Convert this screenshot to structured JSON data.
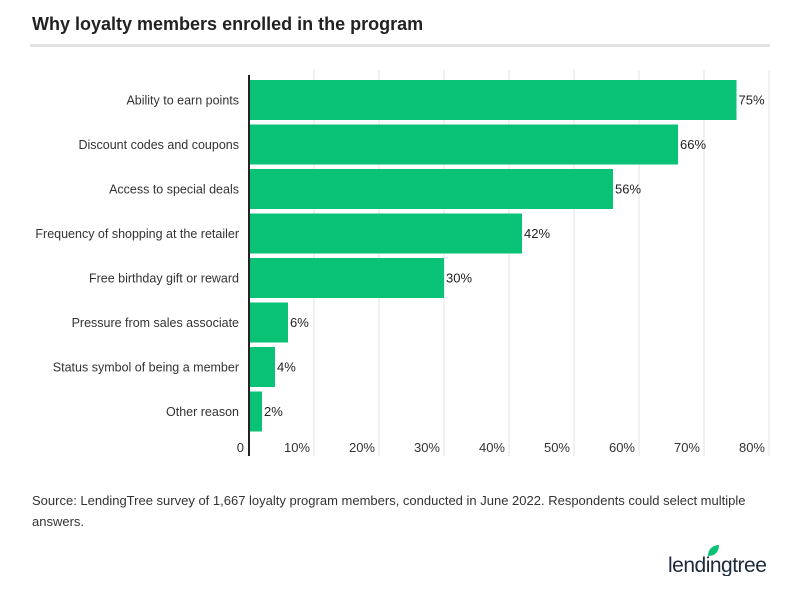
{
  "title": "Why loyalty members enrolled in the program",
  "source": "Source: LendingTree survey of 1,667 loyalty program members, conducted in June 2022. Respondents could select multiple answers.",
  "logo_text": "lendingtree",
  "colors": {
    "bar": "#0ac275",
    "axis": "#222222",
    "grid": "#e3e3e3"
  },
  "chart_data": {
    "type": "bar",
    "orientation": "horizontal",
    "categories": [
      "Ability to earn points",
      "Discount codes and coupons",
      "Access to special deals",
      "Frequency of shopping at the retailer",
      "Free birthday gift or reward",
      "Pressure from sales associate",
      "Status symbol of being a member",
      "Other reason"
    ],
    "values": [
      75,
      66,
      56,
      42,
      30,
      6,
      4,
      2
    ],
    "data_labels": [
      "75%",
      "66%",
      "56%",
      "42%",
      "30%",
      "6%",
      "4%",
      "2%"
    ],
    "xlim": [
      0,
      80
    ],
    "x_ticks": [
      0,
      10,
      20,
      30,
      40,
      50,
      60,
      70,
      80
    ],
    "x_tick_labels": [
      "0",
      "10%",
      "20%",
      "30%",
      "40%",
      "50%",
      "60%",
      "70%",
      "80%"
    ],
    "grid": true
  }
}
